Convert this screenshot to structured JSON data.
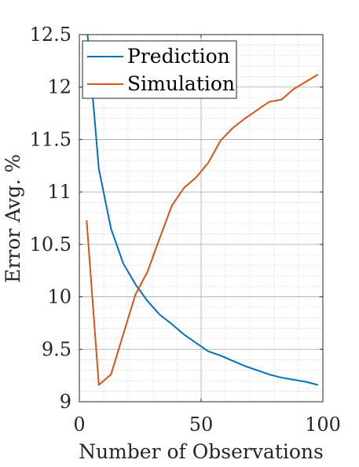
{
  "chart_data": {
    "type": "line",
    "title": "",
    "xlabel": "Number of Observations",
    "ylabel": "Error Avg. %",
    "xlim": [
      0,
      100
    ],
    "ylim": [
      9,
      12.5
    ],
    "xticks": [
      0,
      50,
      100
    ],
    "yticks": [
      9,
      9.5,
      10,
      10.5,
      11,
      11.5,
      12,
      12.5
    ],
    "xtick_labels": [
      "0",
      "50",
      "100"
    ],
    "ytick_labels": [
      "9",
      "9.5",
      "10",
      "10.5",
      "11",
      "11.5",
      "12",
      "12.5"
    ],
    "grid": true,
    "minor_grid": true,
    "legend_position": "top-left",
    "series": [
      {
        "name": "Prediction",
        "color": "#0072BD",
        "x": [
          3,
          8,
          13,
          18,
          23,
          28,
          33,
          38,
          43,
          48,
          53,
          58,
          63,
          68,
          73,
          78,
          83,
          88,
          93,
          98
        ],
        "y": [
          12.6,
          11.22,
          10.65,
          10.32,
          10.12,
          9.96,
          9.83,
          9.74,
          9.64,
          9.56,
          9.48,
          9.44,
          9.39,
          9.34,
          9.3,
          9.26,
          9.23,
          9.21,
          9.19,
          9.16
        ]
      },
      {
        "name": "Simulation",
        "color": "#D95319",
        "x": [
          3,
          8,
          13,
          18,
          23,
          28,
          33,
          38,
          43,
          48,
          53,
          58,
          63,
          68,
          73,
          78,
          83,
          88,
          93,
          98
        ],
        "y": [
          10.73,
          9.16,
          9.26,
          9.64,
          10.02,
          10.24,
          10.56,
          10.87,
          11.04,
          11.14,
          11.28,
          11.49,
          11.61,
          11.7,
          11.78,
          11.86,
          11.88,
          11.98,
          12.05,
          12.12
        ]
      }
    ]
  }
}
